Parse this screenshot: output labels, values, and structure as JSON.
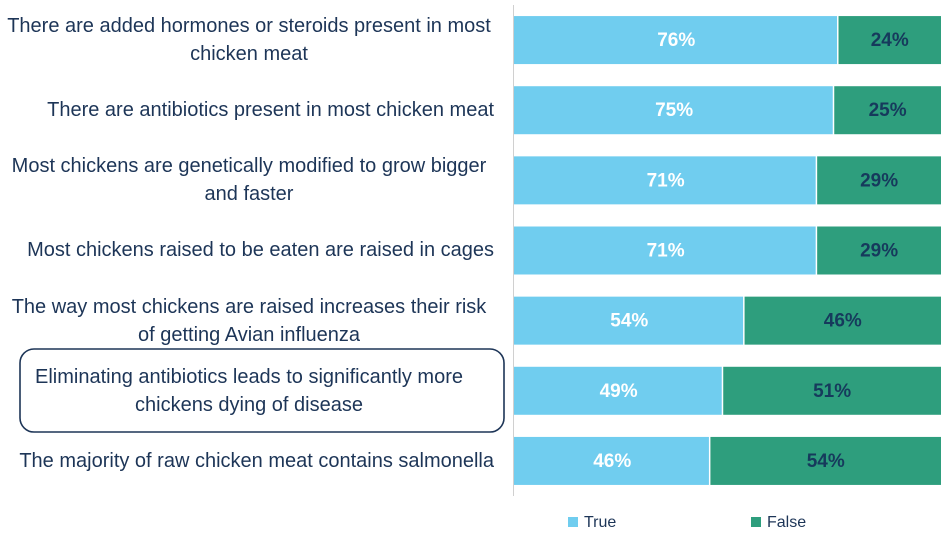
{
  "chart_data": {
    "type": "stacked_bar_horizontal",
    "categories": [
      "There are added hormones or steroids present in most chicken meat",
      "There are antibiotics present in most chicken meat",
      "Most chickens are genetically modified to grow bigger and faster",
      "Most chickens raised to be eaten are raised in cages",
      "The way most chickens are raised increases their risk of getting Avian influenza",
      "Eliminating antibiotics leads to significantly more chickens dying of disease",
      "The majority of raw chicken meat contains salmonella"
    ],
    "series": [
      {
        "name": "True",
        "color": "#70cdef",
        "label_color": "#ffffff",
        "values": [
          76,
          75,
          71,
          71,
          54,
          49,
          46
        ],
        "value_labels": [
          "76%",
          "75%",
          "71%",
          "71%",
          "54%",
          "49%",
          "46%"
        ]
      },
      {
        "name": "False",
        "color": "#2e9e7d",
        "label_color": "#163a5c",
        "values": [
          24,
          25,
          29,
          29,
          46,
          51,
          54
        ],
        "value_labels": [
          "24%",
          "25%",
          "29%",
          "29%",
          "46%",
          "51%",
          "54%"
        ]
      }
    ],
    "xlim": [
      0,
      100
    ],
    "legend": "bottom"
  }
}
